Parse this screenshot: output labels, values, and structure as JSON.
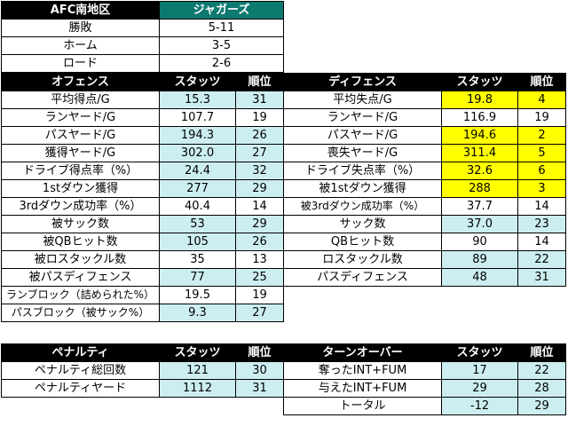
{
  "team": {
    "division": "AFC南地区",
    "name": "ジャガーズ",
    "rows": [
      {
        "label": "勝敗",
        "value": "5-11"
      },
      {
        "label": "ホーム",
        "value": "3-5"
      },
      {
        "label": "ロード",
        "value": "2-6"
      }
    ]
  },
  "offense": {
    "headers": [
      "オフェンス",
      "スタッツ",
      "順位"
    ],
    "rows": [
      {
        "label": "平均得点/G",
        "stat": "15.3",
        "rank": "31"
      },
      {
        "label": "ランヤード/G",
        "stat": "107.7",
        "rank": "19"
      },
      {
        "label": "パスヤード/G",
        "stat": "194.3",
        "rank": "26"
      },
      {
        "label": "獲得ヤード/G",
        "stat": "302.0",
        "rank": "27"
      },
      {
        "label": "ドライブ得点率（%）",
        "stat": "24.4",
        "rank": "32"
      },
      {
        "label": "1stダウン獲得",
        "stat": "277",
        "rank": "29"
      },
      {
        "label": "3rdダウン成功率（%）",
        "stat": "40.4",
        "rank": "14"
      },
      {
        "label": "被サック数",
        "stat": "53",
        "rank": "29"
      },
      {
        "label": "被QBヒット数",
        "stat": "105",
        "rank": "26"
      },
      {
        "label": "被ロスタックル数",
        "stat": "35",
        "rank": "13"
      },
      {
        "label": "被パスディフェンス",
        "stat": "77",
        "rank": "25"
      },
      {
        "label": "ランブロック（詰められた%）",
        "stat": "19.5",
        "rank": "19"
      },
      {
        "label": "パスブロック（被サック%）",
        "stat": "9.3",
        "rank": "27"
      }
    ]
  },
  "defense": {
    "headers": [
      "ディフェンス",
      "スタッツ",
      "順位"
    ],
    "rows": [
      {
        "label": "平均失点/G",
        "stat": "19.8",
        "rank": "4"
      },
      {
        "label": "ランヤード/G",
        "stat": "116.9",
        "rank": "19"
      },
      {
        "label": "パスヤード/G",
        "stat": "194.6",
        "rank": "2"
      },
      {
        "label": "喪失ヤード/G",
        "stat": "311.4",
        "rank": "5"
      },
      {
        "label": "ドライブ失点率（%）",
        "stat": "32.6",
        "rank": "6"
      },
      {
        "label": "被1stダウン獲得",
        "stat": "288",
        "rank": "3"
      },
      {
        "label": "被3rdダウン成功率（%）",
        "stat": "37.7",
        "rank": "14"
      },
      {
        "label": "サック数",
        "stat": "37.0",
        "rank": "23"
      },
      {
        "label": "QBヒット数",
        "stat": "90",
        "rank": "14"
      },
      {
        "label": "ロスタックル数",
        "stat": "89",
        "rank": "22"
      },
      {
        "label": "パスディフェンス",
        "stat": "48",
        "rank": "31"
      }
    ]
  },
  "penalty": {
    "headers": [
      "ペナルティ",
      "スタッツ",
      "順位"
    ],
    "rows": [
      {
        "label": "ペナルティ総回数",
        "stat": "121",
        "rank": "30"
      },
      {
        "label": "ペナルティヤード",
        "stat": "1112",
        "rank": "31"
      }
    ]
  },
  "turnover": {
    "headers": [
      "ターンオーバー",
      "スタッツ",
      "順位"
    ],
    "rows": [
      {
        "label": "奪ったINT+FUM",
        "stat": "17",
        "rank": "22"
      },
      {
        "label": "与えたINT+FUM",
        "stat": "29",
        "rank": "28"
      },
      {
        "label": "トータル",
        "stat": "-12",
        "rank": "29"
      }
    ]
  },
  "colors": {
    "header_bg": "#000000",
    "team_bg": "#0d7a70",
    "stat_cell_bg": "#cdeef1",
    "top_rank_highlight": "#ffff00"
  }
}
